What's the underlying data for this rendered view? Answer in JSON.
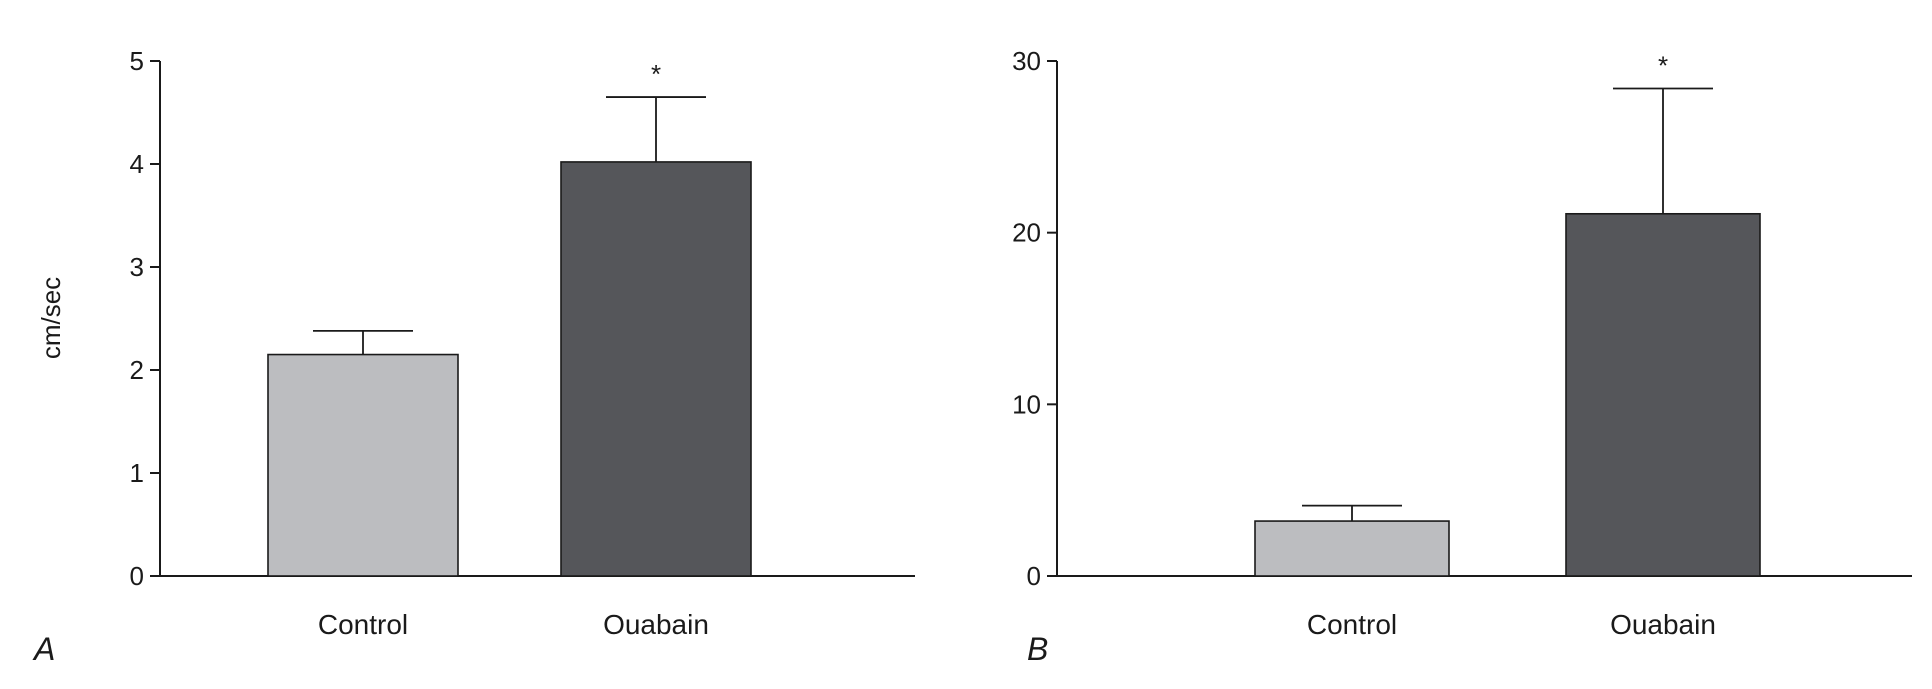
{
  "colors": {
    "control": "#bcbdc0",
    "ouabain": "#55565a",
    "stroke": "#1a1a1a"
  },
  "chart_data": [
    {
      "type": "bar",
      "panel": "A",
      "ylabel": "cm/sec",
      "xlabel": "",
      "categories": [
        "Control",
        "Ouabain"
      ],
      "values": [
        2.15,
        4.02
      ],
      "errors": [
        0.23,
        0.63
      ],
      "annotations": [
        "",
        "*"
      ],
      "ylim": [
        0,
        5
      ],
      "yticks": [
        0,
        1,
        2,
        3,
        4,
        5
      ],
      "grid": false
    },
    {
      "type": "bar",
      "panel": "B",
      "ylabel": "",
      "xlabel": "",
      "categories": [
        "Control",
        "Ouabain"
      ],
      "values": [
        3.2,
        21.1
      ],
      "errors": [
        0.9,
        7.3
      ],
      "annotations": [
        "",
        "*"
      ],
      "ylim": [
        0,
        30
      ],
      "yticks": [
        0,
        10,
        20,
        30
      ],
      "grid": false
    }
  ]
}
